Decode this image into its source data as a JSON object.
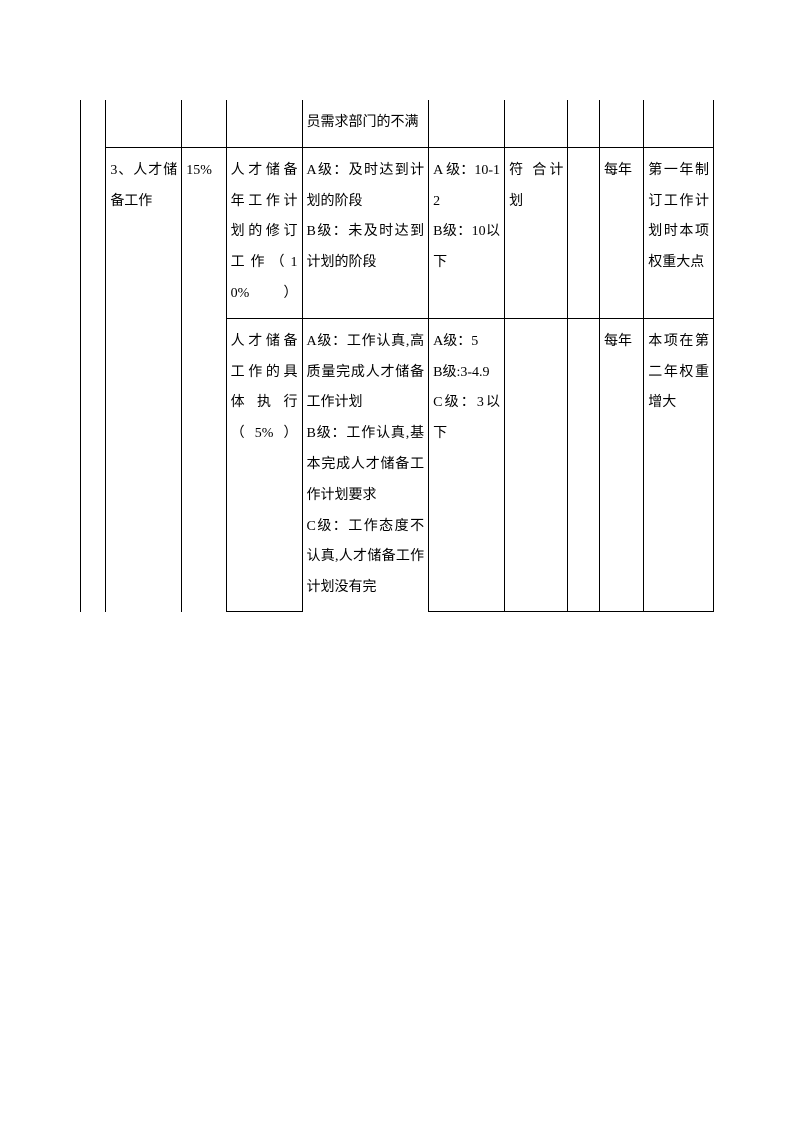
{
  "table": {
    "rows": [
      {
        "col1": "",
        "col2": "",
        "col3": "",
        "col4": "",
        "col5": "员需求部门的不满",
        "col6": "",
        "col7": "",
        "col8": "",
        "col9": "",
        "col10": ""
      },
      {
        "col1": "",
        "col2": "3、人才储备工作",
        "col3": "15%",
        "col4": "人才储备年工作计划的修订工作（10%）",
        "col5": "A级：及时达到计划的阶段\nB级：未及时达到计划的阶段",
        "col6": "A 级：10-12\nB级：10以下",
        "col7": "符 合计划",
        "col8": "",
        "col9": "每年",
        "col10": "第一年制订工作计划时本项权重大点"
      },
      {
        "col1": "",
        "col2": "",
        "col3": "",
        "col4": "人才储备工作的具体执行（5%）",
        "col5": "A级：工作认真,高质量完成人才储备工作计划\nB级：工作认真,基本完成人才储备工作计划要求\nC级：工作态度不认真,人才储备工作计划没有完",
        "col6": "A级：5\nB级:3-4.9\nC级：3以下",
        "col7": "",
        "col8": "",
        "col9": "每年",
        "col10": "本项在第二年权重增大"
      }
    ]
  }
}
